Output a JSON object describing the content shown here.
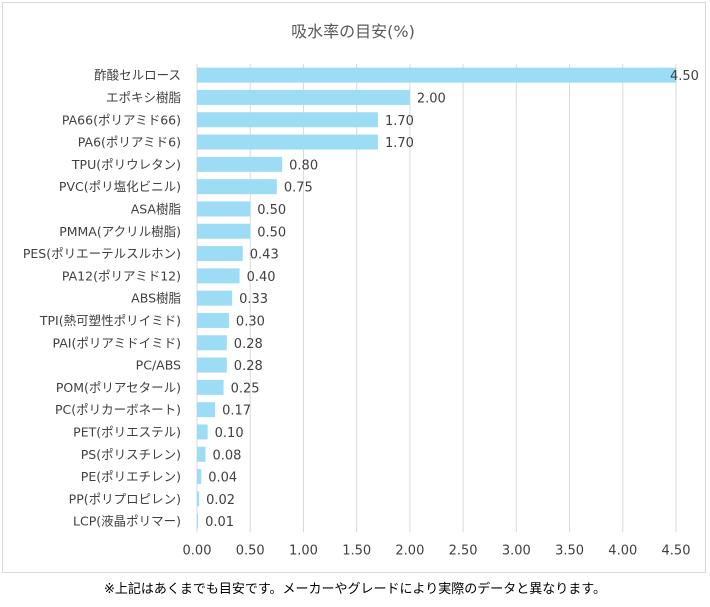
{
  "chart_data": {
    "type": "bar",
    "orientation": "horizontal",
    "title": "吸水率の目安(%)",
    "xlabel": "",
    "ylabel": "",
    "xlim": [
      0,
      4.5
    ],
    "x_ticks": [
      "0.00",
      "0.50",
      "1.00",
      "1.50",
      "2.00",
      "2.50",
      "3.00",
      "3.50",
      "4.00",
      "4.50"
    ],
    "grid": true,
    "legend": "none",
    "bar_color": "#9ddcf5",
    "grid_color": "#d9d9d9",
    "categories": [
      "酢酸セルロース",
      "エポキシ樹脂",
      "PA66(ポリアミド66)",
      "PA6(ポリアミド6)",
      "TPU(ポリウレタン)",
      "PVC(ポリ塩化ビニル)",
      "ASA樹脂",
      "PMMA(アクリル樹脂)",
      "PES(ポリエーテルスルホン)",
      "PA12(ポリアミド12)",
      "ABS樹脂",
      "TPI(熱可塑性ポリイミド)",
      "PAI(ポリアミドイミド)",
      "PC/ABS",
      "POM(ポリアセタール)",
      "PC(ポリカーボネート)",
      "PET(ポリエステル)",
      "PS(ポリスチレン)",
      "PE(ポリエチレン)",
      "PP(ポリプロピレン)",
      "LCP(液晶ポリマー)"
    ],
    "values": [
      4.5,
      2.0,
      1.7,
      1.7,
      0.8,
      0.75,
      0.5,
      0.5,
      0.43,
      0.4,
      0.33,
      0.3,
      0.28,
      0.28,
      0.25,
      0.17,
      0.1,
      0.08,
      0.04,
      0.02,
      0.01
    ],
    "data_labels": [
      "4.50",
      "2.00",
      "1.70",
      "1.70",
      "0.80",
      "0.75",
      "0.50",
      "0.50",
      "0.43",
      "0.40",
      "0.33",
      "0.30",
      "0.28",
      "0.28",
      "0.25",
      "0.17",
      "0.10",
      "0.08",
      "0.04",
      "0.02",
      "0.01"
    ]
  },
  "footnote": "※上記はあくまでも目安です。メーカーやグレードにより実際のデータと異なります。"
}
